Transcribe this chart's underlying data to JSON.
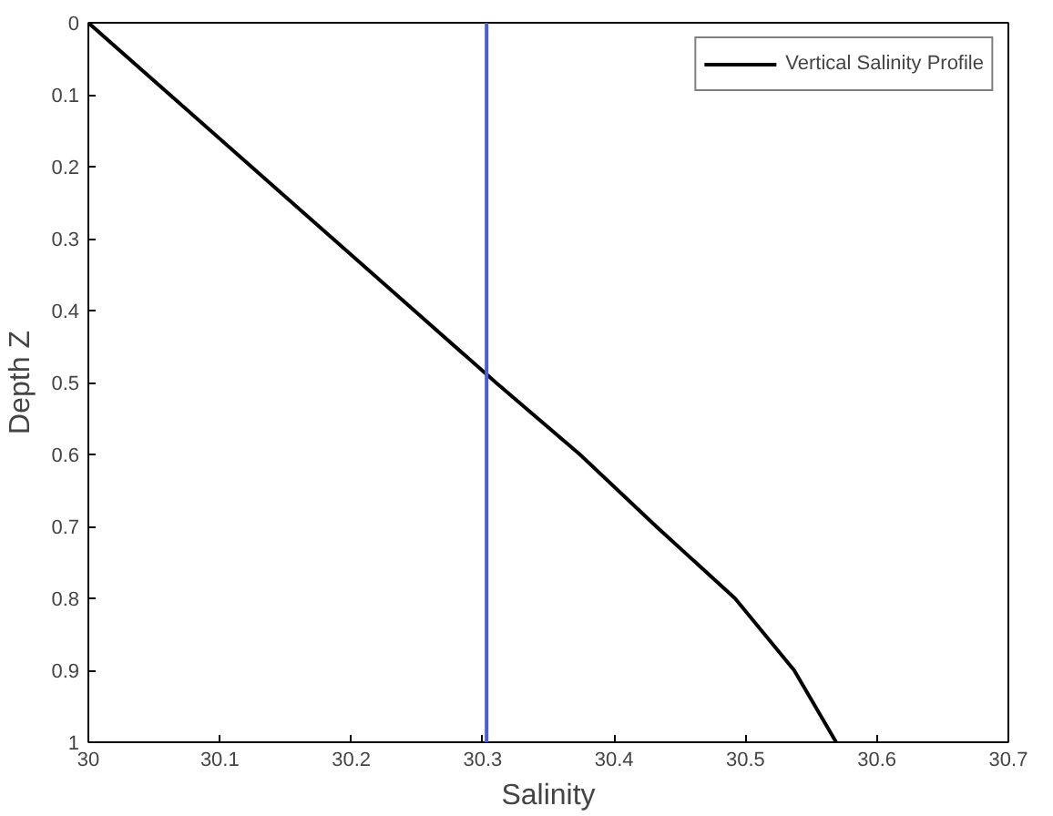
{
  "chart_data": {
    "type": "line",
    "xlabel": "Salinity",
    "ylabel": "Depth Z",
    "series": [
      {
        "name": "Vertical Salinity Profile",
        "color": "#000000",
        "x": [
          30.0,
          30.062,
          30.124,
          30.186,
          30.248,
          30.31,
          30.374,
          30.432,
          30.492,
          30.537,
          30.569
        ],
        "values": [
          0,
          0.1,
          0.2,
          0.3,
          0.4,
          0.5,
          0.6,
          0.7,
          0.8,
          0.9,
          1.0
        ]
      }
    ],
    "ref_lines": [
      {
        "axis": "x",
        "value": 30.303,
        "color": "#4a5cd6"
      }
    ],
    "xlim": [
      30,
      30.7
    ],
    "xticks": [
      30,
      30.1,
      30.2,
      30.3,
      30.4,
      30.5,
      30.6,
      30.7
    ],
    "ylim": [
      1,
      0
    ],
    "yticks": [
      0,
      0.1,
      0.2,
      0.3,
      0.4,
      0.5,
      0.6,
      0.7,
      0.8,
      0.9,
      1
    ],
    "grid": false,
    "legend": "top right",
    "line_style": "solid"
  }
}
